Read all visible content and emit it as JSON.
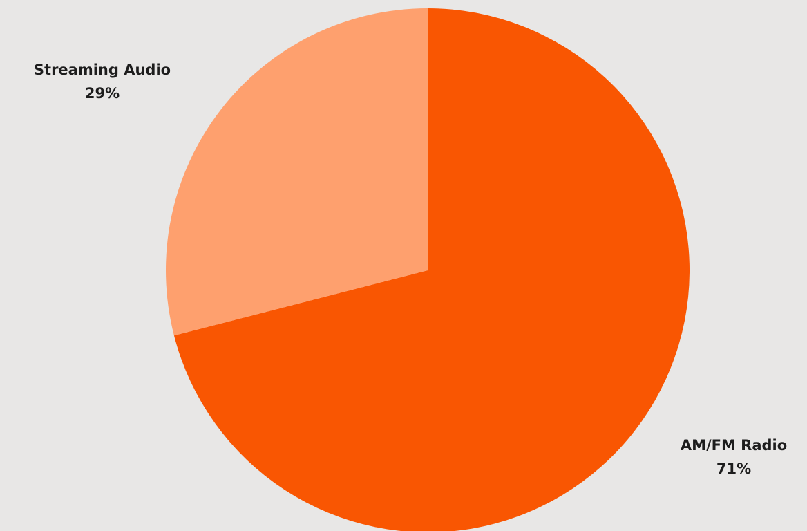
{
  "chart_data": {
    "type": "pie",
    "slices": [
      {
        "label": "AM/FM Radio",
        "value": 71,
        "value_label": "71%",
        "color": "#f95602"
      },
      {
        "label": "Streaming Audio",
        "value": 29,
        "value_label": "29%",
        "color": "#fea06e"
      }
    ],
    "start": "12 o'clock",
    "direction": "clockwise",
    "legend": "none"
  },
  "background_color": "#e8e7e6"
}
